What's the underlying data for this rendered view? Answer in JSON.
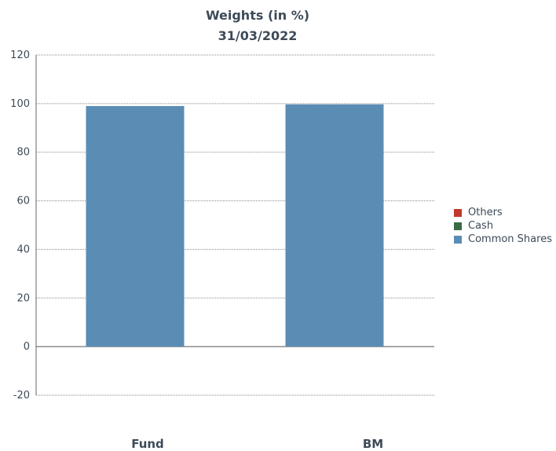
{
  "chart_data": {
    "type": "bar",
    "title": "Weights (in %)",
    "subtitle": "31/03/2022",
    "categories": [
      "Fund",
      "BM"
    ],
    "series": [
      {
        "name": "Others",
        "values": [
          0,
          0
        ],
        "color": "#c0392b"
      },
      {
        "name": "Cash",
        "values": [
          0,
          0
        ],
        "color": "#3a6b45"
      },
      {
        "name": "Common Shares",
        "values": [
          99,
          99.7
        ],
        "color": "#5b8db4"
      }
    ],
    "ylim": [
      -20,
      120
    ],
    "yticks": [
      120,
      100,
      80,
      60,
      40,
      20,
      0,
      -20
    ],
    "grid": true,
    "legend_position": "right",
    "stacked": true
  }
}
